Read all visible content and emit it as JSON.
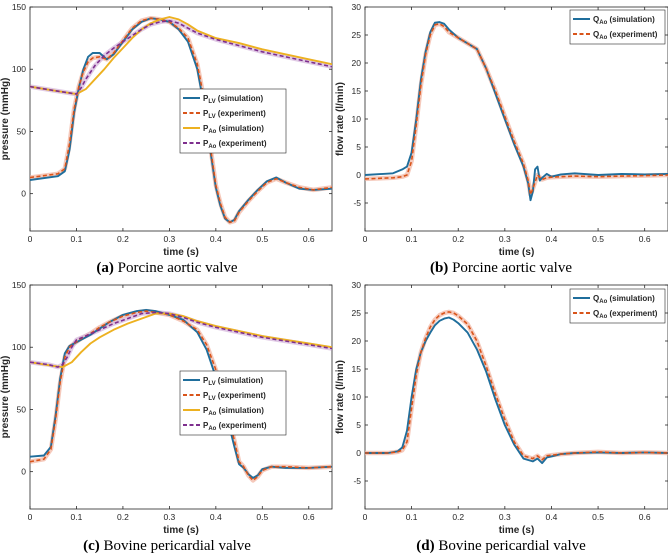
{
  "colors": {
    "sim_blue": "#1f6e9c",
    "exp_orange": "#d9541a",
    "sim_yellow": "#edb120",
    "exp_purple": "#7e2f8e",
    "band_orange": "#f2b7a4",
    "band_purple": "#d6b8dc"
  },
  "chart_data": [
    {
      "id": "a",
      "type": "line",
      "caption_tag": "(a)",
      "caption_text": "Porcine aortic valve",
      "xlabel": "time (s)",
      "ylabel": "pressure (mmHg)",
      "xlim": [
        0,
        0.65
      ],
      "ylim": [
        -30,
        150
      ],
      "xticks": [
        0,
        0.1,
        0.2,
        0.3,
        0.4,
        0.5,
        0.6
      ],
      "xtick_labels": [
        "0",
        "0.1",
        "0.2",
        "0.3",
        "0.4",
        "0.5",
        "0.6"
      ],
      "yticks": [
        0,
        50,
        100,
        150
      ],
      "ytick_labels": [
        "0",
        "50",
        "100",
        "150"
      ],
      "legend_position": "center-right",
      "legend": [
        {
          "base": "P",
          "sub": "LV",
          "text": "(simulation)"
        },
        {
          "base": "P",
          "sub": "LV",
          "text": "(experiment)"
        },
        {
          "base": "P",
          "sub": "Ao",
          "text": "(simulation)"
        },
        {
          "base": "P",
          "sub": "Ao",
          "text": "(experiment)"
        }
      ],
      "series": [
        {
          "name": "P_LV (simulation)",
          "color": "sim_blue",
          "dash": false,
          "x": [
            0,
            0.06,
            0.075,
            0.085,
            0.095,
            0.105,
            0.115,
            0.125,
            0.135,
            0.15,
            0.165,
            0.18,
            0.2,
            0.22,
            0.24,
            0.26,
            0.28,
            0.3,
            0.32,
            0.34,
            0.36,
            0.37,
            0.38,
            0.39,
            0.4,
            0.41,
            0.42,
            0.43,
            0.44,
            0.45,
            0.47,
            0.49,
            0.51,
            0.53,
            0.55,
            0.58,
            0.61,
            0.65
          ],
          "y": [
            11,
            14,
            18,
            35,
            65,
            85,
            100,
            110,
            113,
            113,
            108,
            112,
            122,
            132,
            138,
            141,
            140,
            138,
            132,
            122,
            100,
            80,
            55,
            30,
            5,
            -10,
            -20,
            -23,
            -21,
            -14,
            -5,
            3,
            10,
            13,
            9,
            4,
            3,
            4
          ]
        },
        {
          "name": "P_LV (experiment)",
          "color": "exp_orange",
          "dash": true,
          "x": [
            0,
            0.06,
            0.075,
            0.085,
            0.095,
            0.105,
            0.115,
            0.125,
            0.135,
            0.15,
            0.165,
            0.18,
            0.2,
            0.22,
            0.24,
            0.26,
            0.28,
            0.3,
            0.32,
            0.34,
            0.36,
            0.37,
            0.38,
            0.39,
            0.4,
            0.41,
            0.42,
            0.43,
            0.44,
            0.45,
            0.47,
            0.49,
            0.51,
            0.53,
            0.55,
            0.58,
            0.61,
            0.65
          ],
          "y": [
            13,
            16,
            20,
            40,
            68,
            86,
            98,
            106,
            109,
            110,
            108,
            113,
            123,
            133,
            139,
            141,
            140,
            138,
            133,
            125,
            104,
            85,
            60,
            33,
            7,
            -8,
            -19,
            -23,
            -22,
            -15,
            -6,
            2,
            9,
            12,
            9,
            5,
            3,
            5
          ]
        },
        {
          "name": "P_Ao (simulation)",
          "color": "sim_yellow",
          "dash": false,
          "x": [
            0,
            0.05,
            0.1,
            0.12,
            0.14,
            0.16,
            0.18,
            0.2,
            0.22,
            0.24,
            0.26,
            0.28,
            0.3,
            0.32,
            0.34,
            0.36,
            0.4,
            0.45,
            0.5,
            0.55,
            0.6,
            0.65
          ],
          "y": [
            86,
            83,
            80,
            84,
            92,
            100,
            109,
            117,
            125,
            132,
            137,
            140,
            142,
            140,
            136,
            131,
            125,
            121,
            116,
            112,
            108,
            104
          ]
        },
        {
          "name": "P_Ao (experiment)",
          "color": "exp_purple",
          "dash": true,
          "x": [
            0,
            0.05,
            0.1,
            0.11,
            0.12,
            0.14,
            0.16,
            0.18,
            0.2,
            0.22,
            0.24,
            0.26,
            0.28,
            0.3,
            0.32,
            0.34,
            0.36,
            0.4,
            0.45,
            0.5,
            0.55,
            0.6,
            0.65
          ],
          "y": [
            86,
            83,
            80,
            85,
            92,
            103,
            111,
            117,
            122,
            127,
            132,
            136,
            138,
            139,
            137,
            133,
            129,
            124,
            119,
            114,
            110,
            106,
            102
          ]
        }
      ]
    },
    {
      "id": "b",
      "type": "line",
      "caption_tag": "(b)",
      "caption_text": "Porcine aortic valve",
      "xlabel": "time (s)",
      "ylabel": "flow rate (l/min)",
      "xlim": [
        0,
        0.65
      ],
      "ylim": [
        -10,
        30
      ],
      "xticks": [
        0,
        0.1,
        0.2,
        0.3,
        0.4,
        0.5,
        0.6
      ],
      "xtick_labels": [
        "0",
        "0.1",
        "0.2",
        "0.3",
        "0.4",
        "0.5",
        "0.6"
      ],
      "yticks": [
        -5,
        0,
        5,
        10,
        15,
        20,
        25,
        30
      ],
      "ytick_labels": [
        "-5",
        "0",
        "5",
        "10",
        "15",
        "20",
        "25",
        "30"
      ],
      "legend_position": "top-right",
      "legend": [
        {
          "base": "Q",
          "sub": "Ao",
          "text": "(simulation)"
        },
        {
          "base": "Q",
          "sub": "Ao",
          "text": "(experiment)"
        }
      ],
      "series": [
        {
          "name": "Q_Ao (simulation)",
          "color": "sim_blue",
          "dash": false,
          "x": [
            0,
            0.06,
            0.08,
            0.09,
            0.1,
            0.11,
            0.12,
            0.13,
            0.14,
            0.15,
            0.16,
            0.17,
            0.18,
            0.2,
            0.22,
            0.24,
            0.26,
            0.28,
            0.3,
            0.32,
            0.34,
            0.35,
            0.355,
            0.36,
            0.365,
            0.37,
            0.375,
            0.38,
            0.39,
            0.4,
            0.42,
            0.45,
            0.5,
            0.55,
            0.6,
            0.65
          ],
          "y": [
            0,
            0.3,
            1,
            1.5,
            4,
            10,
            17,
            22,
            25.5,
            27.2,
            27.3,
            27,
            26,
            24.5,
            23.5,
            22.5,
            19,
            14.5,
            10,
            5.5,
            1.5,
            -1.5,
            -4.5,
            -3,
            1,
            1.5,
            -1,
            -0.5,
            0.2,
            -0.3,
            0.1,
            0.3,
            0,
            0.2,
            0.1,
            0.2
          ]
        },
        {
          "name": "Q_Ao (experiment)",
          "color": "exp_orange",
          "dash": true,
          "x": [
            0,
            0.06,
            0.08,
            0.09,
            0.1,
            0.11,
            0.12,
            0.13,
            0.14,
            0.15,
            0.16,
            0.17,
            0.18,
            0.2,
            0.22,
            0.24,
            0.26,
            0.28,
            0.3,
            0.32,
            0.34,
            0.35,
            0.355,
            0.36,
            0.37,
            0.38,
            0.39,
            0.4,
            0.42,
            0.45,
            0.5,
            0.55,
            0.6,
            0.65
          ],
          "y": [
            -0.7,
            -0.5,
            -0.3,
            0,
            2.5,
            9,
            16,
            21.5,
            25,
            26.8,
            27,
            26.5,
            25.5,
            24.5,
            23.5,
            22.5,
            19,
            15,
            10.5,
            6,
            2,
            -1,
            -3.5,
            -2.5,
            0,
            -0.8,
            -0.5,
            -0.4,
            -0.3,
            -0.2,
            -0.3,
            -0.2,
            -0.1,
            0
          ]
        }
      ]
    },
    {
      "id": "c",
      "type": "line",
      "caption_tag": "(c)",
      "caption_text": "Bovine pericardial valve",
      "xlabel": "time (s)",
      "ylabel": "pressure (mmHg)",
      "xlim": [
        0,
        0.65
      ],
      "ylim": [
        -30,
        150
      ],
      "xticks": [
        0,
        0.1,
        0.2,
        0.3,
        0.4,
        0.5,
        0.6
      ],
      "xtick_labels": [
        "0",
        "0.1",
        "0.2",
        "0.3",
        "0.4",
        "0.5",
        "0.6"
      ],
      "yticks": [
        0,
        50,
        100,
        150
      ],
      "ytick_labels": [
        "0",
        "50",
        "100",
        "150"
      ],
      "legend_position": "center-right",
      "legend": [
        {
          "base": "P",
          "sub": "LV",
          "text": "(simulation)"
        },
        {
          "base": "P",
          "sub": "LV",
          "text": "(experiment)"
        },
        {
          "base": "P",
          "sub": "Ao",
          "text": "(simulation)"
        },
        {
          "base": "P",
          "sub": "Ao",
          "text": "(experiment)"
        }
      ],
      "series": [
        {
          "name": "P_LV (simulation)",
          "color": "sim_blue",
          "dash": false,
          "x": [
            0,
            0.03,
            0.045,
            0.055,
            0.065,
            0.075,
            0.085,
            0.095,
            0.11,
            0.13,
            0.15,
            0.17,
            0.2,
            0.23,
            0.25,
            0.27,
            0.3,
            0.33,
            0.36,
            0.38,
            0.4,
            0.42,
            0.44,
            0.45,
            0.46,
            0.47,
            0.48,
            0.49,
            0.5,
            0.52,
            0.55,
            0.6,
            0.65
          ],
          "y": [
            12,
            13,
            20,
            45,
            75,
            95,
            101,
            103,
            106,
            110,
            115,
            120,
            126,
            129,
            130,
            129,
            126,
            122,
            112,
            98,
            76,
            50,
            20,
            6,
            3,
            -2,
            -5,
            -3,
            2,
            4,
            3,
            3,
            4
          ]
        },
        {
          "name": "P_LV (experiment)",
          "color": "exp_orange",
          "dash": true,
          "x": [
            0,
            0.03,
            0.045,
            0.055,
            0.065,
            0.075,
            0.085,
            0.095,
            0.11,
            0.13,
            0.15,
            0.17,
            0.2,
            0.23,
            0.25,
            0.27,
            0.3,
            0.33,
            0.36,
            0.38,
            0.4,
            0.42,
            0.44,
            0.45,
            0.46,
            0.47,
            0.48,
            0.49,
            0.5,
            0.52,
            0.55,
            0.6,
            0.65
          ],
          "y": [
            8,
            10,
            18,
            42,
            72,
            92,
            100,
            103,
            107,
            111,
            116,
            120,
            125,
            128,
            129,
            128,
            126,
            121,
            114,
            102,
            82,
            55,
            25,
            8,
            4,
            -3,
            -7,
            -4,
            1,
            4,
            4,
            3,
            4
          ]
        },
        {
          "name": "P_Ao (simulation)",
          "color": "sim_yellow",
          "dash": false,
          "x": [
            0,
            0.05,
            0.07,
            0.09,
            0.11,
            0.13,
            0.15,
            0.18,
            0.21,
            0.24,
            0.27,
            0.3,
            0.33,
            0.36,
            0.4,
            0.45,
            0.5,
            0.55,
            0.6,
            0.65
          ],
          "y": [
            88,
            85,
            84,
            88,
            96,
            103,
            108,
            114,
            119,
            123,
            127,
            127,
            125,
            121,
            117,
            113,
            109,
            106,
            103,
            100
          ]
        },
        {
          "name": "P_Ao (experiment)",
          "color": "exp_purple",
          "dash": true,
          "x": [
            0,
            0.04,
            0.06,
            0.07,
            0.08,
            0.09,
            0.1,
            0.12,
            0.15,
            0.18,
            0.21,
            0.24,
            0.27,
            0.3,
            0.33,
            0.36,
            0.4,
            0.45,
            0.5,
            0.55,
            0.6,
            0.65
          ],
          "y": [
            88,
            86,
            84,
            86,
            92,
            100,
            106,
            109,
            114,
            119,
            123,
            127,
            128,
            127,
            124,
            120,
            116,
            112,
            108,
            105,
            102,
            99
          ]
        }
      ]
    },
    {
      "id": "d",
      "type": "line",
      "caption_tag": "(d)",
      "caption_text": "Bovine pericardial valve",
      "xlabel": "time (s)",
      "ylabel": "flow rate (l/min)",
      "xlim": [
        0,
        0.65
      ],
      "ylim": [
        -10,
        30
      ],
      "xticks": [
        0,
        0.1,
        0.2,
        0.3,
        0.4,
        0.5,
        0.6
      ],
      "xtick_labels": [
        "0",
        "0.1",
        "0.2",
        "0.3",
        "0.4",
        "0.5",
        "0.6"
      ],
      "yticks": [
        -5,
        0,
        5,
        10,
        15,
        20,
        25,
        30
      ],
      "ytick_labels": [
        "-5",
        "0",
        "5",
        "10",
        "15",
        "20",
        "25",
        "30"
      ],
      "legend_position": "top-right",
      "legend": [
        {
          "base": "Q",
          "sub": "Ao",
          "text": "(simulation)"
        },
        {
          "base": "Q",
          "sub": "Ao",
          "text": "(experiment)"
        }
      ],
      "series": [
        {
          "name": "Q_Ao (simulation)",
          "color": "sim_blue",
          "dash": false,
          "x": [
            0,
            0.05,
            0.07,
            0.08,
            0.09,
            0.1,
            0.11,
            0.12,
            0.13,
            0.14,
            0.15,
            0.16,
            0.17,
            0.18,
            0.19,
            0.2,
            0.22,
            0.24,
            0.26,
            0.28,
            0.3,
            0.32,
            0.34,
            0.36,
            0.37,
            0.38,
            0.39,
            0.4,
            0.42,
            0.45,
            0.5,
            0.55,
            0.6,
            0.65
          ],
          "y": [
            0,
            0,
            0.3,
            1,
            4,
            10,
            15,
            18,
            20,
            21.5,
            22.8,
            23.6,
            24,
            24.2,
            23.8,
            23.2,
            21.5,
            18.5,
            14.5,
            9.5,
            5,
            1.5,
            -1,
            -1.5,
            -1,
            -1.8,
            -0.8,
            -0.6,
            -0.2,
            0,
            0.1,
            0,
            0.1,
            0
          ]
        },
        {
          "name": "Q_Ao (experiment)",
          "color": "exp_orange",
          "dash": true,
          "x": [
            0,
            0.05,
            0.07,
            0.08,
            0.09,
            0.1,
            0.11,
            0.12,
            0.13,
            0.14,
            0.15,
            0.16,
            0.17,
            0.18,
            0.19,
            0.2,
            0.22,
            0.24,
            0.26,
            0.28,
            0.3,
            0.32,
            0.34,
            0.36,
            0.37,
            0.38,
            0.39,
            0.4,
            0.42,
            0.45,
            0.5,
            0.55,
            0.6,
            0.65
          ],
          "y": [
            0,
            0,
            0.2,
            0.5,
            2,
            8,
            14,
            18,
            20.5,
            22.5,
            23.8,
            24.6,
            25,
            25.2,
            25,
            24.5,
            23,
            20,
            15.5,
            10.5,
            6,
            2,
            -0.5,
            -1,
            -0.5,
            -1.2,
            -0.5,
            -0.4,
            -0.2,
            0,
            0.2,
            0,
            0.1,
            0
          ]
        }
      ]
    }
  ]
}
